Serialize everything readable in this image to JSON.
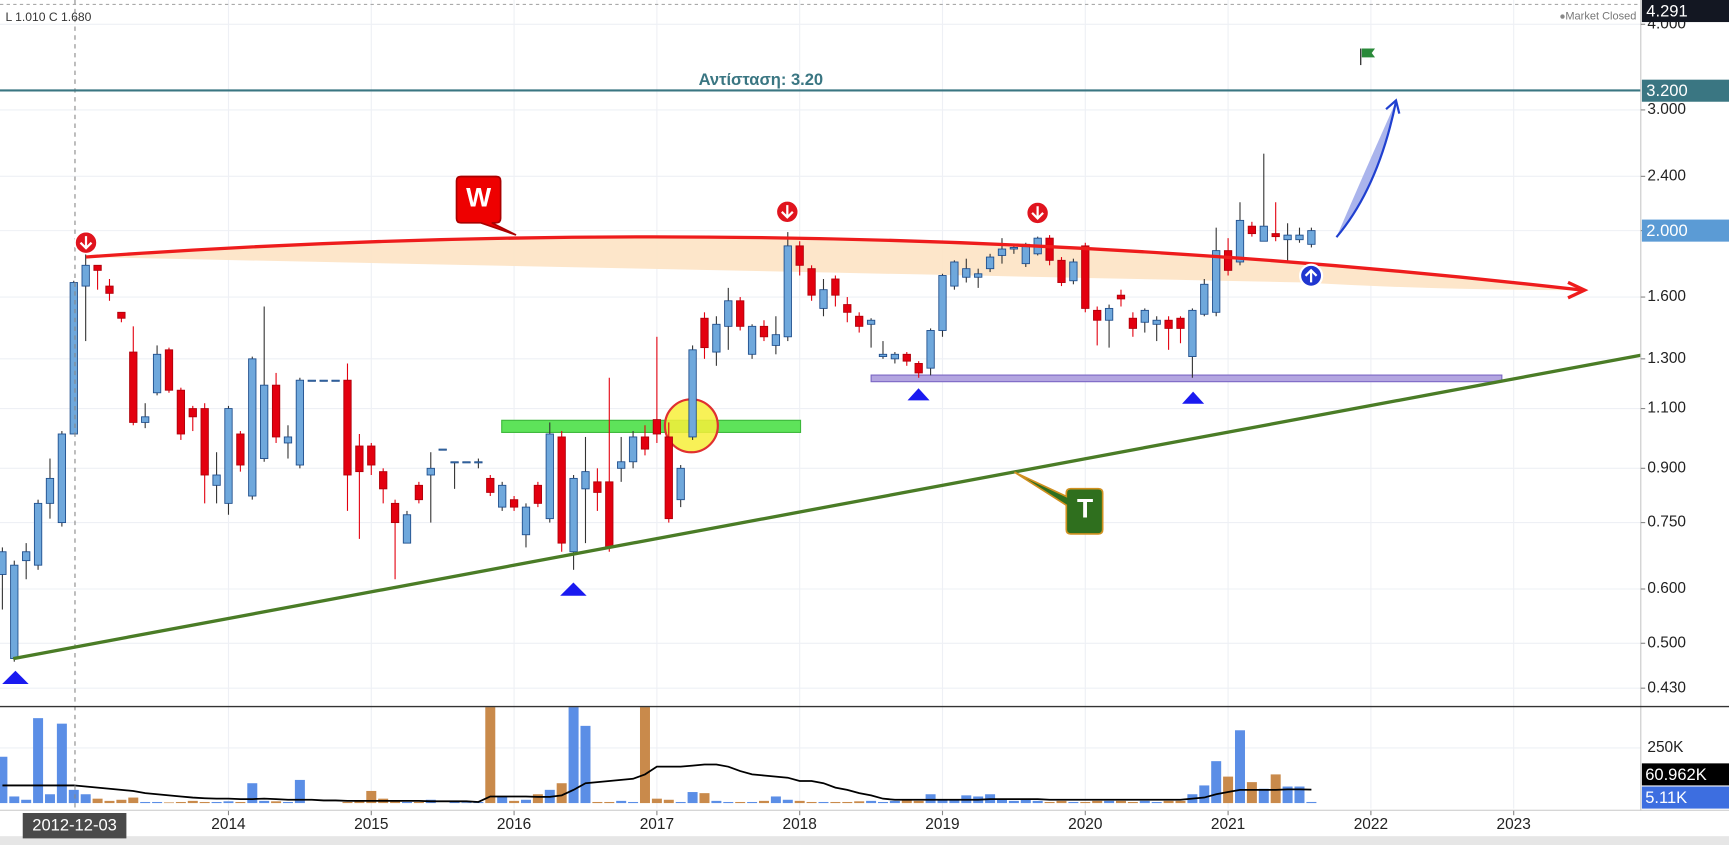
{
  "header": {
    "ohlc": "L 1.010  C 1.680",
    "status": "Market Closed"
  },
  "chart_data": {
    "type": "candlestick",
    "annotations": {
      "resistance": "Αντίσταση: 3.20",
      "pattern_w": "W",
      "pattern_t": "T"
    },
    "crosshair_label": "2012-12-03",
    "x": [
      "2012-06",
      "2012-07",
      "2012-08",
      "2012-09",
      "2012-10",
      "2012-11",
      "2012-12",
      "2013-01",
      "2013-02",
      "2013-03",
      "2013-04",
      "2013-05",
      "2013-06",
      "2013-07",
      "2013-08",
      "2013-09",
      "2013-10",
      "2013-11",
      "2013-12",
      "2014-01",
      "2014-02",
      "2014-03",
      "2014-04",
      "2014-05",
      "2014-06",
      "2014-07",
      "2014-08",
      "2014-09",
      "2014-10",
      "2014-11",
      "2014-12",
      "2015-01",
      "2015-02",
      "2015-03",
      "2015-04",
      "2015-05",
      "2015-06",
      "2015-07",
      "2015-08",
      "2015-09",
      "2015-10",
      "2015-11",
      "2015-12",
      "2016-01",
      "2016-02",
      "2016-03",
      "2016-04",
      "2016-05",
      "2016-06",
      "2016-07",
      "2016-08",
      "2016-09",
      "2016-10",
      "2016-11",
      "2016-12",
      "2017-01",
      "2017-02",
      "2017-03",
      "2017-04",
      "2017-05",
      "2017-06",
      "2017-07",
      "2017-08",
      "2017-09",
      "2017-10",
      "2017-11",
      "2017-12",
      "2018-01",
      "2018-02",
      "2018-03",
      "2018-04",
      "2018-05",
      "2018-06",
      "2018-07",
      "2018-08",
      "2018-09",
      "2018-10",
      "2018-11",
      "2018-12",
      "2019-01",
      "2019-02",
      "2019-03",
      "2019-04",
      "2019-05",
      "2019-06",
      "2019-07",
      "2019-08",
      "2019-09",
      "2019-10",
      "2019-11",
      "2019-12",
      "2020-01",
      "2020-02",
      "2020-03",
      "2020-04",
      "2020-05",
      "2020-06",
      "2020-07",
      "2020-08",
      "2020-09",
      "2020-10",
      "2020-11",
      "2020-12",
      "2021-01",
      "2021-02",
      "2021-03",
      "2021-04",
      "2021-05",
      "2021-06",
      "2021-07",
      "2021-08"
    ],
    "open": [
      0.63,
      0.475,
      0.66,
      0.65,
      0.8,
      0.75,
      1.01,
      1.66,
      1.78,
      1.66,
      1.52,
      1.33,
      1.05,
      1.16,
      1.34,
      1.17,
      1.1,
      1.1,
      0.85,
      0.8,
      1.01,
      0.82,
      0.93,
      1.19,
      0.98,
      0.91,
      1.21,
      1.21,
      1.21,
      1.21,
      0.97,
      0.97,
      0.89,
      0.8,
      0.7,
      0.85,
      0.88,
      0.96,
      0.92,
      0.92,
      0.92,
      0.87,
      0.79,
      0.81,
      0.72,
      0.85,
      0.76,
      1.0,
      0.68,
      0.84,
      0.86,
      0.86,
      0.9,
      0.92,
      1.0,
      1.06,
      1.0,
      0.81,
      1.0,
      1.49,
      1.33,
      1.45,
      1.58,
      1.32,
      1.45,
      1.36,
      1.4,
      1.9,
      1.76,
      1.54,
      1.7,
      1.56,
      1.5,
      1.46,
      1.31,
      1.3,
      1.32,
      1.28,
      1.26,
      1.43,
      1.66,
      1.71,
      1.71,
      1.76,
      1.84,
      1.88,
      1.79,
      1.85,
      1.95,
      1.81,
      1.69,
      1.9,
      1.53,
      1.48,
      1.61,
      1.49,
      1.47,
      1.46,
      1.48,
      1.49,
      1.31,
      1.51,
      1.52,
      1.87,
      1.8,
      2.03,
      1.93,
      1.98,
      1.94,
      1.94,
      1.91
    ],
    "high": [
      0.69,
      0.66,
      0.7,
      0.81,
      0.93,
      1.02,
      1.69,
      1.95,
      1.78,
      1.7,
      1.52,
      1.45,
      1.12,
      1.36,
      1.35,
      1.18,
      1.11,
      1.12,
      0.95,
      1.11,
      1.02,
      1.31,
      1.55,
      1.24,
      1.04,
      1.22,
      1.21,
      1.21,
      1.21,
      1.28,
      1.01,
      0.98,
      0.9,
      0.81,
      0.78,
      0.86,
      0.95,
      0.96,
      0.92,
      0.92,
      0.93,
      0.88,
      0.86,
      0.82,
      0.8,
      0.86,
      1.05,
      1.02,
      0.88,
      1.0,
      0.9,
      1.22,
      1.0,
      1.02,
      1.04,
      1.4,
      1.05,
      0.91,
      1.36,
      1.52,
      1.5,
      1.65,
      1.6,
      1.46,
      1.48,
      1.5,
      1.99,
      1.93,
      1.78,
      1.7,
      1.72,
      1.6,
      1.52,
      1.49,
      1.38,
      1.33,
      1.33,
      1.29,
      1.44,
      1.73,
      1.81,
      1.82,
      1.76,
      1.85,
      1.95,
      1.9,
      1.92,
      1.96,
      1.97,
      1.83,
      1.82,
      1.92,
      1.55,
      1.56,
      1.64,
      1.52,
      1.54,
      1.5,
      1.5,
      1.5,
      1.54,
      1.7,
      2.02,
      1.95,
      2.2,
      2.06,
      2.59,
      2.2,
      2.05,
      2.02,
      2.02
    ],
    "low": [
      0.56,
      0.47,
      0.62,
      0.64,
      0.76,
      0.74,
      1.01,
      1.38,
      1.64,
      1.58,
      1.47,
      1.04,
      1.03,
      1.15,
      1.16,
      0.99,
      1.02,
      0.8,
      0.8,
      0.77,
      0.89,
      0.81,
      0.92,
      0.98,
      0.93,
      0.9,
      1.21,
      1.21,
      1.21,
      0.78,
      0.71,
      0.88,
      0.8,
      0.62,
      0.7,
      0.8,
      0.75,
      0.96,
      0.84,
      0.92,
      0.9,
      0.82,
      0.78,
      0.78,
      0.69,
      0.79,
      0.75,
      0.68,
      0.64,
      0.7,
      0.78,
      0.68,
      0.86,
      0.9,
      0.94,
      0.98,
      0.75,
      0.79,
      0.99,
      1.3,
      1.27,
      1.34,
      1.43,
      1.3,
      1.38,
      1.32,
      1.38,
      1.72,
      1.58,
      1.5,
      1.55,
      1.47,
      1.42,
      1.35,
      1.3,
      1.28,
      1.27,
      1.22,
      1.23,
      1.4,
      1.64,
      1.68,
      1.65,
      1.74,
      1.79,
      1.85,
      1.77,
      1.84,
      1.78,
      1.66,
      1.67,
      1.52,
      1.36,
      1.35,
      1.55,
      1.4,
      1.42,
      1.38,
      1.34,
      1.37,
      1.22,
      1.5,
      1.5,
      1.72,
      1.78,
      1.96,
      1.93,
      1.93,
      1.8,
      1.92,
      1.89
    ],
    "close": [
      0.68,
      0.65,
      0.68,
      0.8,
      0.87,
      1.01,
      1.68,
      1.78,
      1.75,
      1.62,
      1.49,
      1.05,
      1.07,
      1.32,
      1.17,
      1.01,
      1.07,
      0.88,
      0.88,
      1.1,
      0.91,
      1.3,
      1.19,
      1.0,
      1.0,
      1.21,
      1.21,
      1.21,
      1.21,
      0.88,
      0.89,
      0.91,
      0.84,
      0.75,
      0.77,
      0.81,
      0.9,
      0.96,
      0.92,
      0.92,
      0.92,
      0.83,
      0.85,
      0.79,
      0.79,
      0.8,
      1.01,
      0.7,
      0.87,
      0.89,
      0.83,
      0.69,
      0.92,
      1.0,
      0.96,
      1.01,
      0.76,
      0.9,
      1.34,
      1.35,
      1.46,
      1.58,
      1.45,
      1.45,
      1.4,
      1.41,
      1.9,
      1.78,
      1.61,
      1.64,
      1.61,
      1.52,
      1.45,
      1.48,
      1.32,
      1.32,
      1.29,
      1.24,
      1.43,
      1.72,
      1.8,
      1.76,
      1.73,
      1.83,
      1.88,
      1.89,
      1.91,
      1.95,
      1.81,
      1.68,
      1.8,
      1.54,
      1.48,
      1.54,
      1.59,
      1.44,
      1.53,
      1.48,
      1.44,
      1.44,
      1.53,
      1.67,
      1.87,
      1.75,
      2.07,
      1.98,
      2.03,
      1.96,
      1.97,
      1.97,
      2.0
    ],
    "up_color": "#6fa8dc",
    "up_border": "#1f4e8c",
    "down_color": "#e3000f",
    "down_border": "#b0000a",
    "log_scale": true,
    "grid": true,
    "ylim": [
      0.405,
      4.34
    ],
    "yticks": [
      {
        "value": 0.43,
        "label": "0.430"
      },
      {
        "value": 0.5,
        "label": "0.500"
      },
      {
        "value": 0.6,
        "label": "0.600"
      },
      {
        "value": 0.75,
        "label": "0.750"
      },
      {
        "value": 0.9,
        "label": "0.900"
      },
      {
        "value": 1.1,
        "label": "1.100"
      },
      {
        "value": 1.3,
        "label": "1.300"
      },
      {
        "value": 1.6,
        "label": "1.600"
      },
      {
        "value": 2.0,
        "label": "2.000"
      },
      {
        "value": 2.4,
        "label": "2.400"
      },
      {
        "value": 3.0,
        "label": "3.000"
      },
      {
        "value": 4.0,
        "label": "4.000"
      }
    ],
    "xlim": [
      2012.4,
      2023.89
    ],
    "xticks": [
      2014,
      2015,
      2016,
      2017,
      2018,
      2019,
      2020,
      2021,
      2022,
      2023
    ],
    "price_markers": [
      {
        "value": 4.291,
        "label": "4.291",
        "color": "#131722"
      },
      {
        "value": 3.2,
        "label": "3.200",
        "color": "#3a7682"
      },
      {
        "value": 2.0,
        "label": "2.000",
        "color": "#5b9bd5"
      }
    ],
    "volume": {
      "values": [
        210,
        30,
        15,
        385,
        40,
        360,
        60,
        40,
        20,
        10,
        15,
        25,
        5,
        5,
        3,
        5,
        10,
        5,
        5,
        8,
        5,
        90,
        10,
        8,
        5,
        105,
        0,
        0,
        0,
        5,
        10,
        55,
        20,
        10,
        5,
        5,
        15,
        0,
        5,
        3,
        5,
        440,
        30,
        10,
        15,
        40,
        60,
        90,
        440,
        350,
        5,
        5,
        10,
        5,
        440,
        20,
        15,
        5,
        50,
        45,
        10,
        5,
        5,
        5,
        10,
        30,
        15,
        10,
        5,
        5,
        5,
        5,
        8,
        10,
        5,
        10,
        15,
        10,
        40,
        15,
        15,
        35,
        30,
        40,
        20,
        10,
        15,
        10,
        5,
        10,
        5,
        5,
        10,
        10,
        10,
        5,
        10,
        5,
        10,
        10,
        40,
        80,
        190,
        120,
        330,
        95,
        65,
        130,
        75,
        75,
        5.11
      ],
      "ma": [
        80,
        80,
        80,
        80,
        80,
        80,
        80,
        75,
        70,
        65,
        60,
        55,
        45,
        40,
        35,
        30,
        25,
        22,
        20,
        20,
        18,
        18,
        20,
        18,
        15,
        15,
        15,
        12,
        12,
        10,
        10,
        10,
        10,
        10,
        10,
        10,
        8,
        8,
        8,
        8,
        5,
        30,
        30,
        30,
        30,
        28,
        28,
        35,
        60,
        90,
        95,
        100,
        105,
        110,
        130,
        165,
        165,
        165,
        170,
        175,
        175,
        165,
        145,
        130,
        125,
        120,
        115,
        100,
        100,
        90,
        70,
        60,
        45,
        35,
        20,
        15,
        15,
        15,
        15,
        15,
        15,
        15,
        15,
        18,
        18,
        18,
        18,
        18,
        15,
        15,
        15,
        15,
        15,
        15,
        15,
        15,
        15,
        15,
        15,
        15,
        20,
        25,
        40,
        50,
        60,
        60,
        60,
        60,
        62,
        62,
        60.962
      ],
      "ylim": [
        0,
        440
      ],
      "yticks": [
        {
          "value": 250,
          "label": "250K"
        }
      ],
      "up_color": "#5b8ee6",
      "down_color": "#c98a4b",
      "ma_color": "#000000",
      "markers": [
        {
          "value": 60.962,
          "label": "60.962K",
          "color": "#000000"
        },
        {
          "value": 5.11,
          "label": "5.11K",
          "color": "#3d6ee0"
        }
      ]
    }
  }
}
